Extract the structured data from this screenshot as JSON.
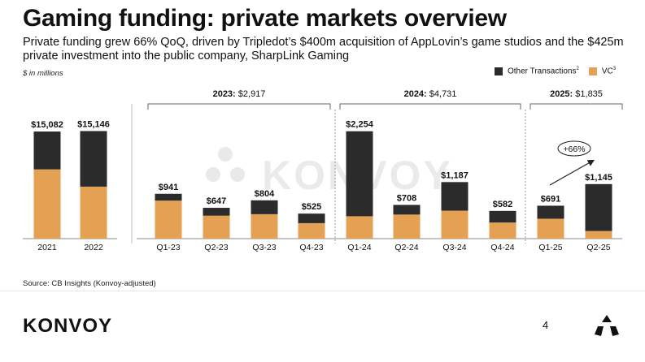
{
  "page": {
    "title": "Gaming funding: private markets overview",
    "subtitle": "Private funding grew 66% QoQ, driven by Tripledot’s $400m acquisition of AppLovin’s game studios and the $425m private investment into the public company, SharpLink Gaming",
    "units": "$ in millions",
    "source": "Source: CB Insights (Konvoy-adjusted)",
    "logo": "KONVOY",
    "watermark": "KONVOY",
    "page_number": "4"
  },
  "legend": {
    "other": "Other Transactions",
    "other_sup": "2",
    "vc": "VC",
    "vc_sup": "3"
  },
  "colors": {
    "other": "#2b2b2b",
    "vc": "#e4a153",
    "axis": "#888888"
  },
  "chart_data": {
    "type": "bar",
    "stacked": true,
    "categories": [
      "2021",
      "2022",
      "Q1-23",
      "Q2-23",
      "Q3-23",
      "Q4-23",
      "Q1-24",
      "Q2-24",
      "Q3-24",
      "Q4-24",
      "Q1-25",
      "Q2-25"
    ],
    "totals": [
      15082,
      15146,
      941,
      647,
      804,
      525,
      2254,
      708,
      1187,
      582,
      691,
      1145
    ],
    "total_labels": [
      "$15,082",
      "$15,146",
      "$941",
      "$647",
      "$804",
      "$525",
      "$2,254",
      "$708",
      "$1,187",
      "$582",
      "$691",
      "$1,145"
    ],
    "series": [
      {
        "name": "VC",
        "values": [
          9750,
          7320,
          798,
          482,
          513,
          325,
          470,
          505,
          587,
          338,
          418,
          160
        ]
      },
      {
        "name": "Other Transactions",
        "values": [
          5332,
          7826,
          143,
          165,
          291,
          200,
          1784,
          203,
          600,
          244,
          273,
          985
        ]
      }
    ],
    "annual_scale_max": 16000,
    "quarterly_scale_max": 2300,
    "groups": [
      {
        "year": "2023:",
        "total": "$2,917",
        "from": 2,
        "to": 5
      },
      {
        "year": "2024:",
        "total": "$4,731",
        "from": 6,
        "to": 9
      },
      {
        "year": "2025:",
        "total": "$1,835",
        "from": 10,
        "to": 11
      }
    ],
    "annotation": "+66%"
  }
}
